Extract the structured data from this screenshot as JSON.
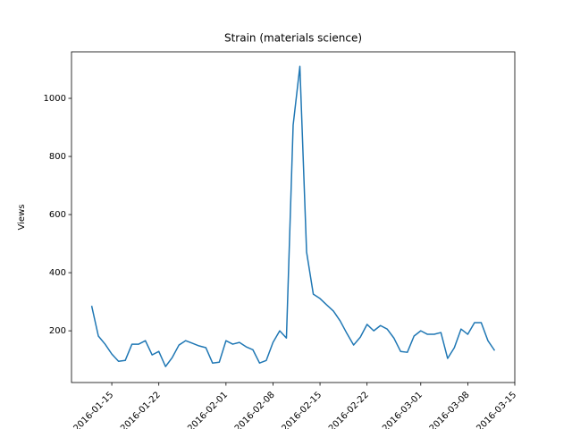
{
  "chart_data": {
    "type": "line",
    "title": "Strain (materials science)",
    "ylabel": "Views",
    "color": "#1f77b4",
    "x": [
      "2016-01-12",
      "2016-01-13",
      "2016-01-14",
      "2016-01-15",
      "2016-01-16",
      "2016-01-17",
      "2016-01-18",
      "2016-01-19",
      "2016-01-20",
      "2016-01-21",
      "2016-01-22",
      "2016-01-23",
      "2016-01-24",
      "2016-01-25",
      "2016-01-26",
      "2016-01-27",
      "2016-01-28",
      "2016-01-29",
      "2016-01-30",
      "2016-01-31",
      "2016-02-01",
      "2016-02-02",
      "2016-02-03",
      "2016-02-04",
      "2016-02-05",
      "2016-02-06",
      "2016-02-07",
      "2016-02-08",
      "2016-02-09",
      "2016-02-10",
      "2016-02-11",
      "2016-02-12",
      "2016-02-13",
      "2016-02-14",
      "2016-02-15",
      "2016-02-16",
      "2016-02-17",
      "2016-02-18",
      "2016-02-19",
      "2016-02-20",
      "2016-02-21",
      "2016-02-22",
      "2016-02-23",
      "2016-02-24",
      "2016-02-25",
      "2016-02-26",
      "2016-02-27",
      "2016-02-28",
      "2016-02-29",
      "2016-03-01",
      "2016-03-02",
      "2016-03-03",
      "2016-03-04",
      "2016-03-05",
      "2016-03-06",
      "2016-03-07",
      "2016-03-08",
      "2016-03-09",
      "2016-03-10",
      "2016-03-11",
      "2016-03-12"
    ],
    "values": [
      286,
      182,
      154,
      120,
      95,
      98,
      154,
      154,
      166,
      117,
      129,
      77,
      108,
      151,
      166,
      157,
      148,
      142,
      89,
      92,
      166,
      154,
      160,
      145,
      135,
      89,
      98,
      160,
      200,
      175,
      908,
      1110,
      471,
      326,
      311,
      289,
      268,
      234,
      191,
      151,
      178,
      222,
      200,
      218,
      206,
      175,
      129,
      126,
      182,
      200,
      188,
      188,
      194,
      105,
      142,
      206,
      188,
      228,
      228,
      166,
      132
    ],
    "xlim": [
      "2016-01-09",
      "2016-03-15"
    ],
    "xticks": [
      "2016-01-15",
      "2016-01-22",
      "2016-02-01",
      "2016-02-08",
      "2016-02-15",
      "2016-02-22",
      "2016-03-01",
      "2016-03-08",
      "2016-03-15"
    ],
    "ylim": [
      22,
      1160
    ],
    "yticks": [
      200,
      400,
      600,
      800,
      1000
    ]
  }
}
